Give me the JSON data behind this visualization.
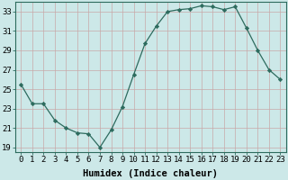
{
  "x": [
    0,
    1,
    2,
    3,
    4,
    5,
    6,
    7,
    8,
    9,
    10,
    11,
    12,
    13,
    14,
    15,
    16,
    17,
    18,
    19,
    20,
    21,
    22,
    23
  ],
  "y": [
    25.5,
    23.5,
    23.5,
    21.8,
    21.0,
    20.5,
    20.4,
    19.0,
    20.8,
    23.2,
    26.5,
    29.7,
    31.5,
    33.0,
    33.2,
    33.3,
    33.6,
    33.5,
    33.2,
    33.5,
    31.3,
    29.0,
    27.0,
    26.0
  ],
  "line_color": "#2d6b5e",
  "marker": "D",
  "marker_size": 2.2,
  "bg_color": "#cce8e8",
  "grid_color": "#b0d4d4",
  "xlabel": "Humidex (Indice chaleur)",
  "xlim": [
    -0.5,
    23.5
  ],
  "ylim": [
    18.5,
    34.0
  ],
  "yticks": [
    19,
    21,
    23,
    25,
    27,
    29,
    31,
    33
  ],
  "xticks": [
    0,
    1,
    2,
    3,
    4,
    5,
    6,
    7,
    8,
    9,
    10,
    11,
    12,
    13,
    14,
    15,
    16,
    17,
    18,
    19,
    20,
    21,
    22,
    23
  ],
  "xlabel_fontsize": 7.5,
  "tick_fontsize": 6.5
}
